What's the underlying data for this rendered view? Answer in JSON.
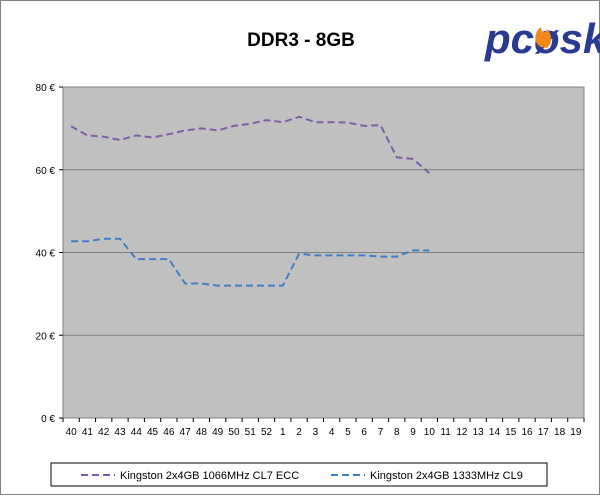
{
  "logo": {
    "text": "pcøsk",
    "colors": {
      "body": "#2a3a90",
      "flame": "#f08a1c"
    }
  },
  "chart_data": {
    "type": "line",
    "title": "DDR3 - 8GB",
    "xlabel": "",
    "ylabel": "",
    "categories": [
      "40",
      "41",
      "42",
      "43",
      "44",
      "45",
      "46",
      "47",
      "48",
      "49",
      "50",
      "51",
      "52",
      "1",
      "2",
      "3",
      "4",
      "5",
      "6",
      "7",
      "8",
      "9",
      "10",
      "11",
      "12",
      "13",
      "14",
      "15",
      "16",
      "17",
      "18",
      "19"
    ],
    "y_ticks": [
      "0 €",
      "20 €",
      "40 €",
      "60 €",
      "80 €"
    ],
    "ylim": [
      0,
      80
    ],
    "grid": true,
    "plot_background": "#c0c0c0",
    "legend_position": "bottom",
    "series": [
      {
        "name": "Kingston 2x4GB 1066MHz CL7 ECC",
        "color": "#7b5ea7",
        "dash": true,
        "values": [
          70.5,
          68.3,
          68.0,
          67.2,
          68.3,
          67.8,
          68.6,
          69.5,
          70.0,
          69.5,
          70.6,
          71.1,
          72.0,
          71.5,
          72.8,
          71.5,
          71.5,
          71.4,
          70.6,
          70.8,
          63.0,
          62.6,
          59.2,
          null,
          null,
          null,
          null,
          null,
          null,
          null,
          null,
          null
        ]
      },
      {
        "name": "Kingston 2x4GB 1333MHz CL9",
        "color": "#3f7ec6",
        "dash": true,
        "values": [
          42.7,
          42.7,
          43.3,
          43.3,
          38.4,
          38.4,
          38.4,
          32.5,
          32.5,
          32.0,
          32.0,
          32.0,
          32.0,
          32.0,
          39.7,
          39.3,
          39.3,
          39.3,
          39.3,
          39.0,
          39.0,
          40.5,
          40.5,
          null,
          null,
          null,
          null,
          null,
          null,
          null,
          null,
          null
        ]
      }
    ]
  }
}
